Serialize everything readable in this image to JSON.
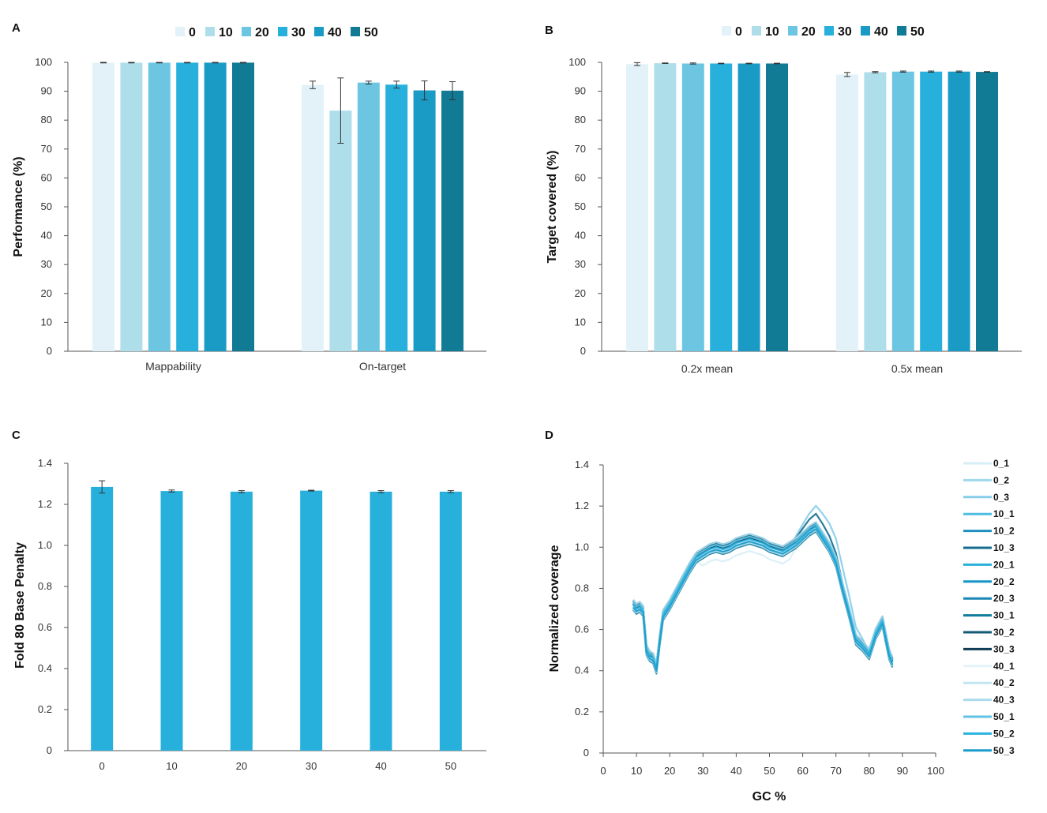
{
  "colors": {
    "levels": [
      "#e2f2f8",
      "#afdeeb",
      "#6cc6e2",
      "#27b0dc",
      "#1a9bc6",
      "#117a94"
    ],
    "bar_c": "#27b0dc",
    "axis": "#555555",
    "errorbar": "#333333",
    "lines_d": [
      "#d8eef6",
      "#9fd8ec",
      "#86cde9",
      "#4fbde2",
      "#1f8fbf",
      "#156c8f",
      "#2aafd9",
      "#1496c6",
      "#1a86b4",
      "#147c9e",
      "#125a76",
      "#0f3d55",
      "#e4f3f9",
      "#c2e5f2",
      "#a8dced",
      "#62c3e6",
      "#2ab3e1",
      "#1a9ccc"
    ]
  },
  "chart_data": [
    {
      "panel": "A",
      "type": "bar",
      "ylabel": "Performance (%)",
      "xlabel": "",
      "ylim": [
        0,
        100
      ],
      "yticks": [
        0,
        10,
        20,
        30,
        40,
        50,
        60,
        70,
        80,
        90,
        100
      ],
      "categories": [
        "Mappability",
        "On-target"
      ],
      "legend": [
        "0",
        "10",
        "20",
        "30",
        "40",
        "50"
      ],
      "legend_position": "top",
      "series": [
        {
          "name": "0",
          "values": [
            99.9,
            92.2
          ],
          "errors": [
            0.1,
            1.3
          ]
        },
        {
          "name": "10",
          "values": [
            99.9,
            83.3
          ],
          "errors": [
            0.1,
            11.3
          ]
        },
        {
          "name": "20",
          "values": [
            99.9,
            93.0
          ],
          "errors": [
            0.1,
            0.5
          ]
        },
        {
          "name": "30",
          "values": [
            99.9,
            92.3
          ],
          "errors": [
            0.1,
            1.2
          ]
        },
        {
          "name": "40",
          "values": [
            99.9,
            90.3
          ],
          "errors": [
            0.1,
            3.3
          ]
        },
        {
          "name": "50",
          "values": [
            99.9,
            90.2
          ],
          "errors": [
            0.1,
            3.1
          ]
        }
      ]
    },
    {
      "panel": "B",
      "type": "bar",
      "ylabel": "Target covered (%)",
      "xlabel": "",
      "ylim": [
        0,
        100
      ],
      "yticks": [
        0,
        10,
        20,
        30,
        40,
        50,
        60,
        70,
        80,
        90,
        100
      ],
      "categories": [
        "0.2x mean",
        "0.5x mean"
      ],
      "legend": [
        "0",
        "10",
        "20",
        "30",
        "40",
        "50"
      ],
      "legend_position": "top",
      "series": [
        {
          "name": "0",
          "values": [
            99.4,
            95.8
          ],
          "errors": [
            0.5,
            0.7
          ]
        },
        {
          "name": "10",
          "values": [
            99.7,
            96.6
          ],
          "errors": [
            0.1,
            0.2
          ]
        },
        {
          "name": "20",
          "values": [
            99.6,
            96.8
          ],
          "errors": [
            0.2,
            0.2
          ]
        },
        {
          "name": "30",
          "values": [
            99.6,
            96.8
          ],
          "errors": [
            0.1,
            0.2
          ]
        },
        {
          "name": "40",
          "values": [
            99.6,
            96.8
          ],
          "errors": [
            0.1,
            0.2
          ]
        },
        {
          "name": "50",
          "values": [
            99.6,
            96.7
          ],
          "errors": [
            0.1,
            0.1
          ]
        }
      ]
    },
    {
      "panel": "C",
      "type": "bar",
      "ylabel": "Fold 80 Base Penalty",
      "xlabel": "",
      "ylim": [
        0,
        1.4
      ],
      "yticks": [
        "0",
        "0.2",
        "0.4",
        "0.6",
        "0.8",
        "1.0",
        "1.2",
        "1.4"
      ],
      "categories": [
        "0",
        "10",
        "20",
        "30",
        "40",
        "50"
      ],
      "values": [
        1.285,
        1.265,
        1.262,
        1.267,
        1.262,
        1.262
      ],
      "errors": [
        0.03,
        0.005,
        0.005,
        0.002,
        0.005,
        0.005
      ]
    },
    {
      "panel": "D",
      "type": "line",
      "xlabel": "GC %",
      "ylabel": "Normalized coverage",
      "xlim": [
        0,
        100
      ],
      "ylim": [
        0,
        1.4
      ],
      "xticks": [
        0,
        10,
        20,
        30,
        40,
        50,
        60,
        70,
        80,
        90,
        100
      ],
      "yticks": [
        "0",
        "0.2",
        "0.4",
        "0.6",
        "0.8",
        "1.0",
        "1.2",
        "1.4"
      ],
      "legend_position": "right",
      "x": [
        9,
        10,
        11,
        12,
        13,
        14,
        15,
        16,
        17,
        18,
        20,
        22,
        24,
        26,
        28,
        30,
        32,
        34,
        36,
        38,
        40,
        42,
        44,
        46,
        48,
        50,
        52,
        54,
        56,
        58,
        60,
        62,
        64,
        66,
        68,
        70,
        72,
        74,
        76,
        78,
        80,
        82,
        84,
        85,
        86,
        87
      ],
      "base": [
        0.72,
        0.7,
        0.71,
        0.69,
        0.5,
        0.47,
        0.46,
        0.41,
        0.55,
        0.67,
        0.72,
        0.78,
        0.84,
        0.9,
        0.95,
        0.97,
        0.99,
        1.0,
        0.99,
        1.0,
        1.02,
        1.03,
        1.04,
        1.03,
        1.02,
        1.0,
        0.99,
        0.98,
        1.0,
        1.02,
        1.05,
        1.08,
        1.1,
        1.05,
        1.0,
        0.93,
        0.8,
        0.68,
        0.55,
        0.52,
        0.48,
        0.58,
        0.64,
        0.56,
        0.48,
        0.44
      ],
      "series": [
        {
          "name": "0_1"
        },
        {
          "name": "0_2"
        },
        {
          "name": "0_3"
        },
        {
          "name": "10_1"
        },
        {
          "name": "10_2"
        },
        {
          "name": "10_3"
        },
        {
          "name": "20_1"
        },
        {
          "name": "20_2"
        },
        {
          "name": "20_3"
        },
        {
          "name": "30_1"
        },
        {
          "name": "30_2"
        },
        {
          "name": "30_3"
        },
        {
          "name": "40_1"
        },
        {
          "name": "40_2"
        },
        {
          "name": "40_3"
        },
        {
          "name": "50_1"
        },
        {
          "name": "50_2"
        },
        {
          "name": "50_3"
        }
      ]
    }
  ]
}
